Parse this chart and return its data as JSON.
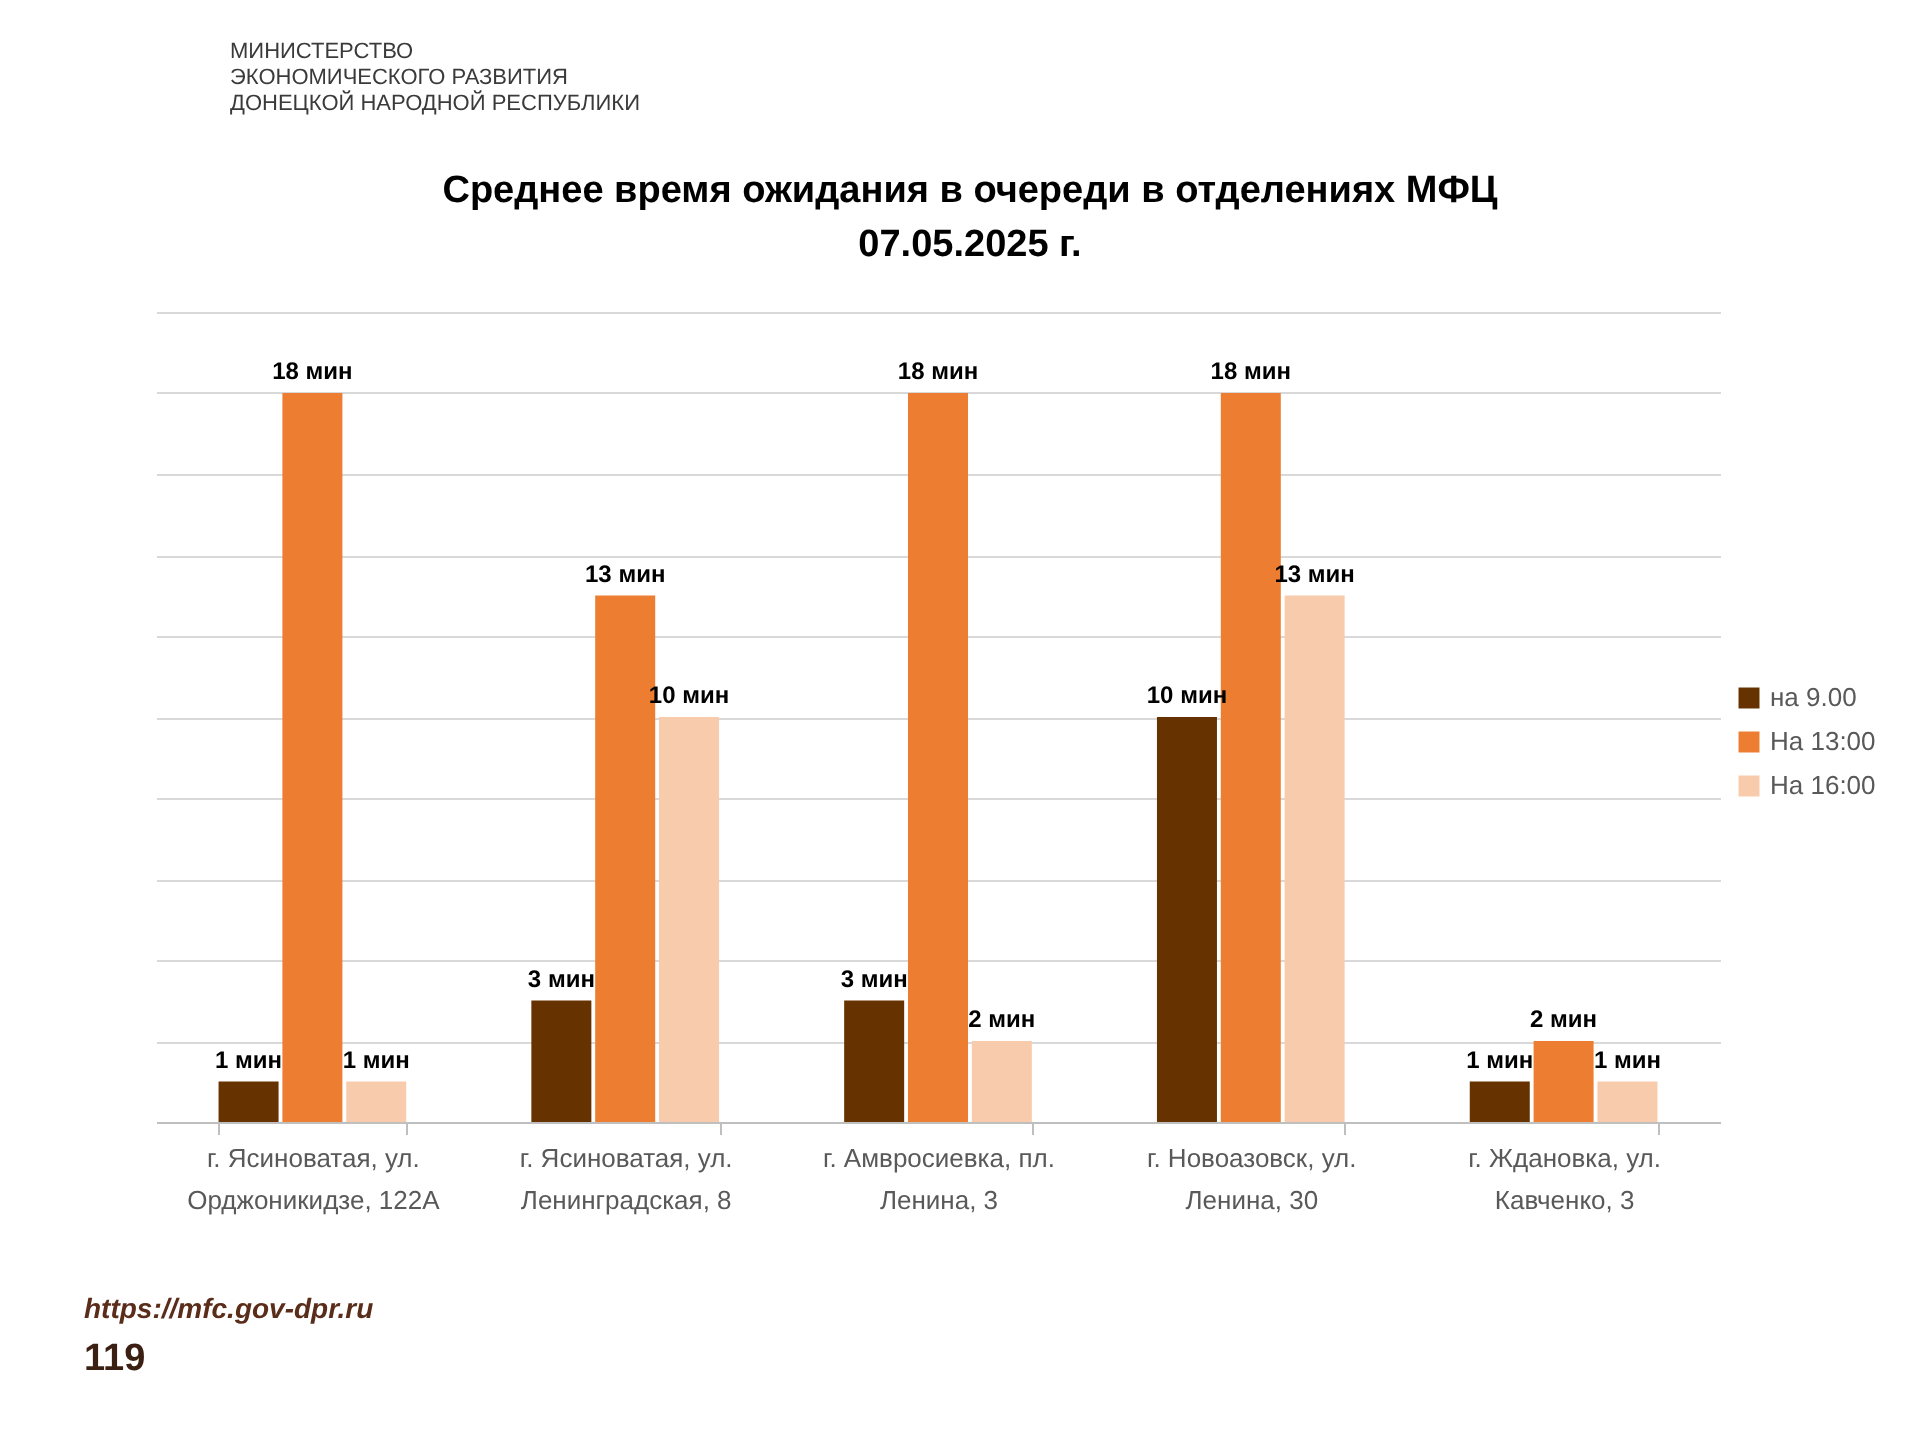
{
  "chart_data": {
    "type": "bar",
    "title": "Среднее время ожидания в очереди в отделениях МФЦ",
    "subtitle": "07.05.2025   г.",
    "categories": [
      "г. Ясиноватая, ул.\nОрджоникидзе, 122А",
      "г. Ясиноватая, ул.\nЛенинградская, 8",
      "г. Амвросиевка, пл.\nЛенина, 3",
      "г. Новоазовск, ул.\nЛенина, 30",
      "г. Ждановка, ул.\nКавченко, 3"
    ],
    "series": [
      {
        "name": "на 9.00",
        "color": "#663300",
        "values": [
          1,
          3,
          3,
          10,
          1
        ],
        "value_labels": [
          "1 мин",
          "3 мин",
          "3 мин",
          "10 мин",
          "1 мин"
        ]
      },
      {
        "name": "На 13:00",
        "color": "#ed7d31",
        "values": [
          18,
          13,
          18,
          18,
          2
        ],
        "value_labels": [
          "18 мин",
          "13  мин",
          "18 мин",
          "18 мин",
          "2 мин"
        ]
      },
      {
        "name": "На 16:00",
        "color": "#f8cbad",
        "values": [
          1,
          10,
          2,
          13,
          1
        ],
        "value_labels": [
          "1 мин",
          "10 мин",
          "2 мин",
          "13 мин",
          "1 мин"
        ]
      }
    ],
    "ylim": [
      0,
      20
    ],
    "yticks": [
      {
        "value": 0,
        "label": null
      },
      {
        "value": 2,
        "label": null
      },
      {
        "value": 4,
        "label": null
      },
      {
        "value": 6,
        "label": null
      },
      {
        "value": 8,
        "label": null
      },
      {
        "value": 10,
        "label": null
      },
      {
        "value": 12,
        "label": null
      },
      {
        "value": 14,
        "label": null
      },
      {
        "value": 16,
        "label": null
      },
      {
        "value": 18,
        "label": null
      },
      {
        "value": 20,
        "label": null
      }
    ],
    "tick_labels": "x",
    "grid": "y",
    "legend": "right",
    "annotations": [
      "МИНИСТЕРСТВО\nЭКОНОМИЧЕСКОГО РАЗВИТИЯ\nДОНЕЦКОЙ НАРОДНОЙ РЕСПУБЛИКИ",
      "https://mfc.gov-dpr.ru",
      "119"
    ]
  }
}
